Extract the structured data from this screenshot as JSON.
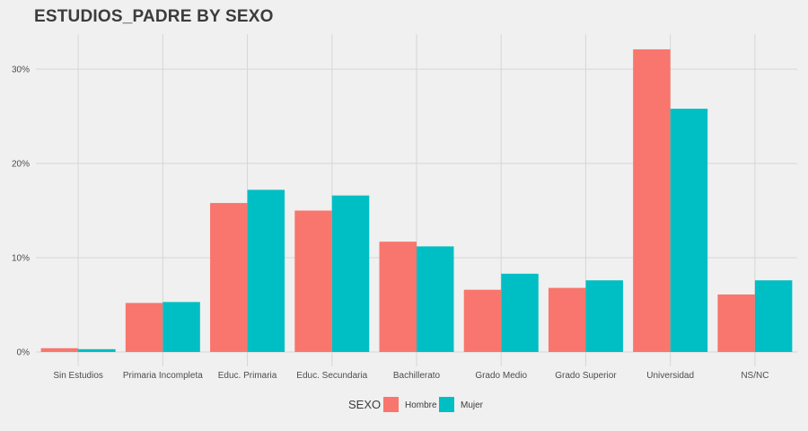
{
  "chart_data": {
    "type": "bar",
    "title": "ESTUDIOS_PADRE BY SEXO",
    "xlabel": "",
    "ylabel": "",
    "categories": [
      "Sin Estudios",
      "Primaria Incompleta",
      "Educ. Primaria",
      "Educ. Secundaria",
      "Bachillerato",
      "Grado Medio",
      "Grado Superior",
      "Universidad",
      "NS/NC"
    ],
    "series": [
      {
        "name": "Hombre",
        "color": "#f8766d",
        "values": [
          0.4,
          5.2,
          15.8,
          15.0,
          11.7,
          6.6,
          6.8,
          32.1,
          6.1
        ]
      },
      {
        "name": "Mujer",
        "color": "#00bfc4",
        "values": [
          0.3,
          5.3,
          17.2,
          16.6,
          11.2,
          8.3,
          7.6,
          25.8,
          7.6
        ]
      }
    ],
    "ylim": [
      0,
      33.5
    ],
    "yticks": [
      0,
      10,
      20,
      30
    ],
    "ytick_labels": [
      "0%",
      "10%",
      "20%",
      "30%"
    ],
    "legend": {
      "title": "SEXO",
      "position": "bottom"
    },
    "grid": true
  }
}
